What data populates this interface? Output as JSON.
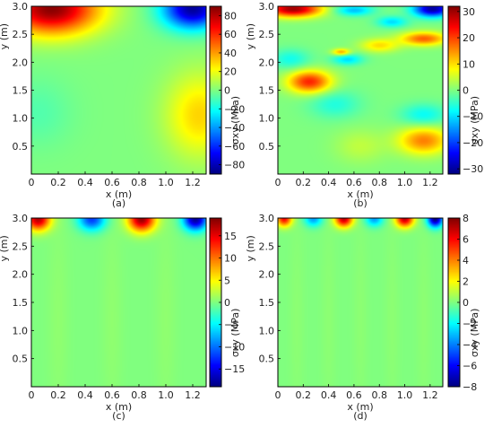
{
  "figure": {
    "x_axis_label": "x (m)",
    "y_axis_label": "y (m)",
    "colorbar_label": "σxy (MPa)"
  },
  "chart_data": [
    {
      "type": "heatmap",
      "panel_caption": "(a)",
      "xlabel": "x (m)",
      "ylabel": "y (m)",
      "xlim": [
        0,
        1.3
      ],
      "ylim": [
        0,
        3.0
      ],
      "x_ticks": [
        "0",
        "0.2",
        "0.4",
        "0.6",
        "0.8",
        "1.0",
        "1.2"
      ],
      "y_ticks": [
        "0.5",
        "1.0",
        "1.5",
        "2.0",
        "2.5",
        "3.0"
      ],
      "colorbar": {
        "label": "σxy (MPa)",
        "range": [
          -90,
          90
        ],
        "ticks": [
          "80",
          "60",
          "40",
          "20",
          "0",
          "−20",
          "−40",
          "−60",
          "−80"
        ],
        "colormap": "jet"
      },
      "features": [
        {
          "x": 0.15,
          "y": 2.95,
          "value": 88,
          "spread_x": 0.35,
          "spread_y": 0.45
        },
        {
          "x": 1.2,
          "y": 2.95,
          "value": -85,
          "spread_x": 0.22,
          "spread_y": 0.35
        },
        {
          "x": 1.25,
          "y": 1.05,
          "value": 30,
          "spread_x": 0.25,
          "spread_y": 0.75
        },
        {
          "x": 0.05,
          "y": 1.1,
          "value": -8,
          "spread_x": 0.25,
          "spread_y": 0.6
        }
      ]
    },
    {
      "type": "heatmap",
      "panel_caption": "(b)",
      "xlabel": "x (m)",
      "ylabel": "y (m)",
      "xlim": [
        0,
        1.3
      ],
      "ylim": [
        0,
        3.0
      ],
      "x_ticks": [
        "0",
        "0.2",
        "0.4",
        "0.6",
        "0.8",
        "1.0",
        "1.2"
      ],
      "y_ticks": [
        "0.5",
        "1.0",
        "1.5",
        "2.0",
        "2.5",
        "3.0"
      ],
      "colorbar": {
        "label": "σxy (MPa)",
        "range": [
          -32,
          32
        ],
        "ticks": [
          "30",
          "20",
          "10",
          "0",
          "−10",
          "−20",
          "−30"
        ],
        "colormap": "jet"
      },
      "features": [
        {
          "x": 0.12,
          "y": 2.95,
          "value": 30,
          "spread_x": 0.22,
          "spread_y": 0.14
        },
        {
          "x": 1.22,
          "y": 2.95,
          "value": -30,
          "spread_x": 0.15,
          "spread_y": 0.14
        },
        {
          "x": 0.6,
          "y": 2.93,
          "value": -12,
          "spread_x": 0.15,
          "spread_y": 0.1
        },
        {
          "x": 0.9,
          "y": 2.72,
          "value": -10,
          "spread_x": 0.12,
          "spread_y": 0.1
        },
        {
          "x": 1.15,
          "y": 2.42,
          "value": 18,
          "spread_x": 0.18,
          "spread_y": 0.12
        },
        {
          "x": 0.8,
          "y": 2.3,
          "value": 10,
          "spread_x": 0.15,
          "spread_y": 0.12
        },
        {
          "x": 0.5,
          "y": 2.18,
          "value": 14,
          "spread_x": 0.07,
          "spread_y": 0.06
        },
        {
          "x": 0.55,
          "y": 2.05,
          "value": -10,
          "spread_x": 0.12,
          "spread_y": 0.1
        },
        {
          "x": 0.25,
          "y": 1.65,
          "value": 22,
          "spread_x": 0.17,
          "spread_y": 0.2
        },
        {
          "x": 0.45,
          "y": 1.25,
          "value": -6,
          "spread_x": 0.2,
          "spread_y": 0.25
        },
        {
          "x": 1.15,
          "y": 0.6,
          "value": 16,
          "spread_x": 0.2,
          "spread_y": 0.25
        },
        {
          "x": 1.15,
          "y": 1.05,
          "value": -8,
          "spread_x": 0.18,
          "spread_y": 0.2
        },
        {
          "x": 0.1,
          "y": 2.05,
          "value": -7,
          "spread_x": 0.15,
          "spread_y": 0.18
        },
        {
          "x": 0.65,
          "y": 0.5,
          "value": 4,
          "spread_x": 0.2,
          "spread_y": 0.3
        }
      ]
    },
    {
      "type": "heatmap",
      "panel_caption": "(c)",
      "xlabel": "x (m)",
      "ylabel": "y (m)",
      "xlim": [
        0,
        1.3
      ],
      "ylim": [
        0,
        3.0
      ],
      "x_ticks": [
        "0",
        "0.2",
        "0.4",
        "0.6",
        "0.8",
        "1.0",
        "1.2"
      ],
      "y_ticks": [
        "0.5",
        "1.0",
        "1.5",
        "2.0",
        "2.5",
        "3.0"
      ],
      "colorbar": {
        "label": "σxy (MPa)",
        "range": [
          -19,
          19
        ],
        "ticks": [
          "15",
          "10",
          "5",
          "0",
          "−5",
          "−10",
          "−15"
        ],
        "colormap": "jet"
      },
      "features": [
        {
          "x": 0.05,
          "y": 2.98,
          "value": 17,
          "spread_x": 0.09,
          "spread_y": 0.2
        },
        {
          "x": 0.45,
          "y": 2.98,
          "value": -12,
          "spread_x": 0.1,
          "spread_y": 0.2
        },
        {
          "x": 0.82,
          "y": 2.98,
          "value": 18,
          "spread_x": 0.1,
          "spread_y": 0.22
        },
        {
          "x": 1.22,
          "y": 2.98,
          "value": -18,
          "spread_x": 0.09,
          "spread_y": 0.2
        },
        {
          "x": 0.2,
          "y": 1.2,
          "value": 0.6,
          "spread_x": 0.08,
          "spread_y": 2.0
        },
        {
          "x": 0.6,
          "y": 1.2,
          "value": 0.6,
          "spread_x": 0.08,
          "spread_y": 2.0
        },
        {
          "x": 1.0,
          "y": 1.2,
          "value": 0.6,
          "spread_x": 0.08,
          "spread_y": 2.0
        }
      ]
    },
    {
      "type": "heatmap",
      "panel_caption": "(d)",
      "xlabel": "x (m)",
      "ylabel": "y (m)",
      "xlim": [
        0,
        1.3
      ],
      "ylim": [
        0,
        3.0
      ],
      "x_ticks": [
        "0",
        "0.2",
        "0.4",
        "0.6",
        "0.8",
        "1.0",
        "1.2"
      ],
      "y_ticks": [
        "0.5",
        "1.0",
        "1.5",
        "2.0",
        "2.5",
        "3.0"
      ],
      "colorbar": {
        "label": "σxy (MPa)",
        "range": [
          -8,
          8
        ],
        "ticks": [
          "8",
          "6",
          "4",
          "2",
          "0",
          "−2",
          "−4",
          "−6",
          "−8"
        ],
        "colormap": "jet"
      },
      "features": [
        {
          "x": 0.05,
          "y": 2.99,
          "value": 6,
          "spread_x": 0.06,
          "spread_y": 0.14
        },
        {
          "x": 0.28,
          "y": 2.99,
          "value": -3.5,
          "spread_x": 0.07,
          "spread_y": 0.14
        },
        {
          "x": 0.52,
          "y": 2.99,
          "value": 7,
          "spread_x": 0.07,
          "spread_y": 0.15
        },
        {
          "x": 0.76,
          "y": 2.99,
          "value": -3.5,
          "spread_x": 0.07,
          "spread_y": 0.14
        },
        {
          "x": 1.0,
          "y": 2.99,
          "value": 7,
          "spread_x": 0.07,
          "spread_y": 0.15
        },
        {
          "x": 1.24,
          "y": 2.99,
          "value": -8,
          "spread_x": 0.06,
          "spread_y": 0.15
        },
        {
          "x": 0.15,
          "y": 1.2,
          "value": 0.2,
          "spread_x": 0.06,
          "spread_y": 2.0
        },
        {
          "x": 0.4,
          "y": 1.2,
          "value": 0.2,
          "spread_x": 0.06,
          "spread_y": 2.0
        },
        {
          "x": 0.65,
          "y": 1.2,
          "value": 0.2,
          "spread_x": 0.06,
          "spread_y": 2.0
        },
        {
          "x": 0.9,
          "y": 1.2,
          "value": 0.2,
          "spread_x": 0.06,
          "spread_y": 2.0
        },
        {
          "x": 1.15,
          "y": 1.2,
          "value": 0.2,
          "spread_x": 0.06,
          "spread_y": 2.0
        }
      ]
    }
  ]
}
